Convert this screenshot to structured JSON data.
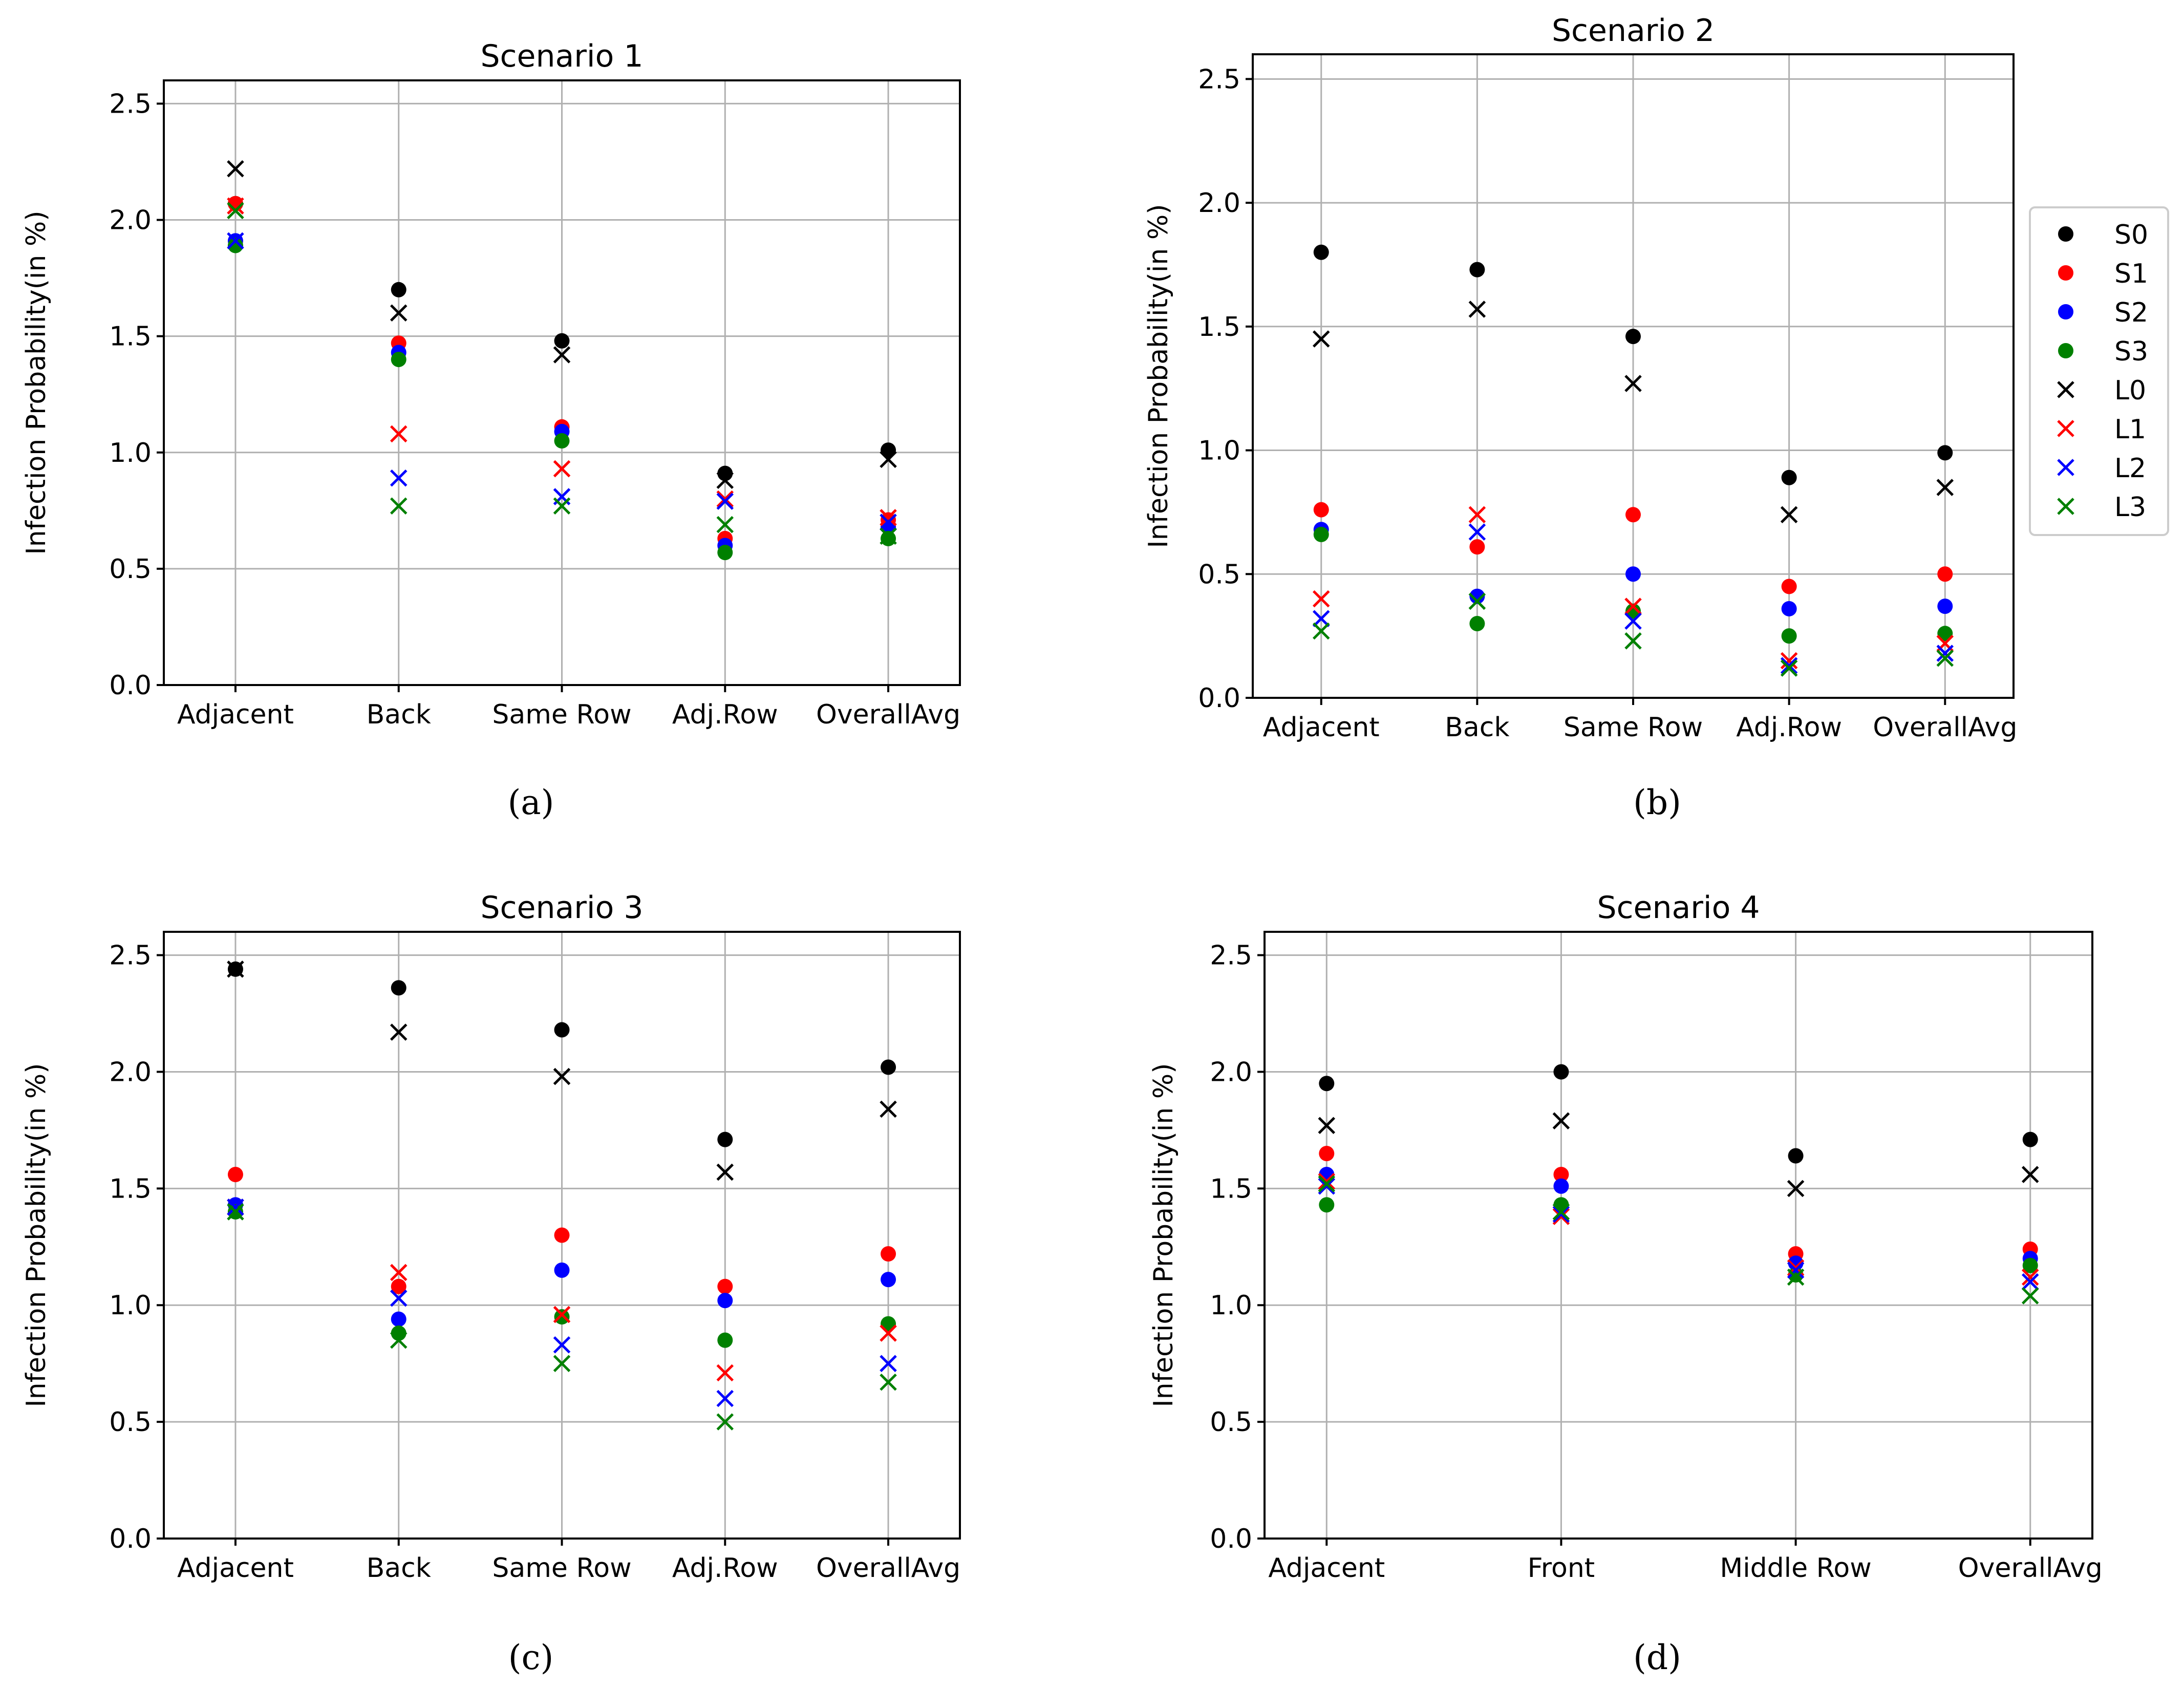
{
  "series_styles": {
    "S0": {
      "marker": "circle",
      "color": "#000000"
    },
    "S1": {
      "marker": "circle",
      "color": "#ff0000"
    },
    "S2": {
      "marker": "circle",
      "color": "#0000ff"
    },
    "S3": {
      "marker": "circle",
      "color": "#008000"
    },
    "L0": {
      "marker": "x",
      "color": "#000000"
    },
    "L1": {
      "marker": "x",
      "color": "#ff0000"
    },
    "L2": {
      "marker": "x",
      "color": "#0000ff"
    },
    "L3": {
      "marker": "x",
      "color": "#008000"
    }
  },
  "legend": {
    "placement": "right of panel (b)",
    "entries": [
      "S0",
      "S1",
      "S2",
      "S3",
      "L0",
      "L1",
      "L2",
      "L3"
    ]
  },
  "chart_data": [
    {
      "type": "scatter",
      "title": "Scenario 1",
      "caption": "(a)",
      "ylabel": "Infection Probability(in %)",
      "xlabel": "",
      "categories": [
        "Adjacent",
        "Back",
        "Same Row",
        "Adj.Row",
        "OverallAvg"
      ],
      "ylim": [
        0,
        2.6
      ],
      "yticks": [
        "0.0",
        "0.5",
        "1.0",
        "1.5",
        "2.0",
        "2.5"
      ],
      "grid": true,
      "series": [
        {
          "name": "S0",
          "values": [
            2.07,
            1.7,
            1.48,
            0.91,
            1.01
          ]
        },
        {
          "name": "S1",
          "values": [
            2.07,
            1.47,
            1.11,
            0.63,
            0.71
          ]
        },
        {
          "name": "S2",
          "values": [
            1.91,
            1.43,
            1.09,
            0.6,
            0.68
          ]
        },
        {
          "name": "S3",
          "values": [
            1.89,
            1.4,
            1.05,
            0.57,
            0.63
          ]
        },
        {
          "name": "L0",
          "values": [
            2.22,
            1.6,
            1.42,
            0.88,
            0.97
          ]
        },
        {
          "name": "L1",
          "values": [
            2.06,
            1.08,
            0.93,
            0.8,
            0.72
          ]
        },
        {
          "name": "L2",
          "values": [
            1.91,
            0.89,
            0.81,
            0.79,
            0.7
          ]
        },
        {
          "name": "L3",
          "values": [
            2.04,
            0.77,
            0.77,
            0.69,
            0.64
          ]
        }
      ]
    },
    {
      "type": "scatter",
      "title": "Scenario 2",
      "caption": "(b)",
      "ylabel": "Infection Probability(in %)",
      "xlabel": "",
      "categories": [
        "Adjacent",
        "Back",
        "Same Row",
        "Adj.Row",
        "OverallAvg"
      ],
      "ylim": [
        0,
        2.6
      ],
      "yticks": [
        "0.0",
        "0.5",
        "1.0",
        "1.5",
        "2.0",
        "2.5"
      ],
      "grid": true,
      "series": [
        {
          "name": "S0",
          "values": [
            1.8,
            1.73,
            1.46,
            0.89,
            0.99
          ]
        },
        {
          "name": "S1",
          "values": [
            0.76,
            0.61,
            0.74,
            0.45,
            0.5
          ]
        },
        {
          "name": "S2",
          "values": [
            0.68,
            0.41,
            0.5,
            0.36,
            0.37
          ]
        },
        {
          "name": "S3",
          "values": [
            0.66,
            0.3,
            0.35,
            0.25,
            0.26
          ]
        },
        {
          "name": "L0",
          "values": [
            1.45,
            1.57,
            1.27,
            0.74,
            0.85
          ]
        },
        {
          "name": "L1",
          "values": [
            0.4,
            0.74,
            0.37,
            0.15,
            0.22
          ]
        },
        {
          "name": "L2",
          "values": [
            0.32,
            0.67,
            0.31,
            0.13,
            0.18
          ]
        },
        {
          "name": "L3",
          "values": [
            0.27,
            0.39,
            0.23,
            0.12,
            0.16
          ]
        }
      ]
    },
    {
      "type": "scatter",
      "title": "Scenario 3",
      "caption": "(c)",
      "ylabel": "Infection Probability(in %)",
      "xlabel": "",
      "categories": [
        "Adjacent",
        "Back",
        "Same Row",
        "Adj.Row",
        "OverallAvg"
      ],
      "ylim": [
        0,
        2.6
      ],
      "yticks": [
        "0.0",
        "0.5",
        "1.0",
        "1.5",
        "2.0",
        "2.5"
      ],
      "grid": true,
      "series": [
        {
          "name": "S0",
          "values": [
            2.44,
            2.36,
            2.18,
            1.71,
            2.02
          ]
        },
        {
          "name": "S1",
          "values": [
            1.56,
            1.08,
            1.3,
            1.08,
            1.22
          ]
        },
        {
          "name": "S2",
          "values": [
            1.43,
            0.94,
            1.15,
            1.02,
            1.11
          ]
        },
        {
          "name": "S3",
          "values": [
            1.4,
            0.88,
            0.95,
            0.85,
            0.92
          ]
        },
        {
          "name": "L0",
          "values": [
            2.44,
            2.17,
            1.98,
            1.57,
            1.84
          ]
        },
        {
          "name": "L1",
          "values": [
            1.42,
            1.14,
            0.96,
            0.71,
            0.88
          ]
        },
        {
          "name": "L2",
          "values": [
            1.42,
            1.03,
            0.83,
            0.6,
            0.75
          ]
        },
        {
          "name": "L3",
          "values": [
            1.4,
            0.85,
            0.75,
            0.5,
            0.67
          ]
        }
      ]
    },
    {
      "type": "scatter",
      "title": "Scenario 4",
      "caption": "(d)",
      "ylabel": "Infection Probability(in %)",
      "xlabel": "",
      "categories": [
        "Adjacent",
        "Front",
        "Middle Row",
        "OverallAvg"
      ],
      "ylim": [
        0,
        2.6
      ],
      "yticks": [
        "0.0",
        "0.5",
        "1.0",
        "1.5",
        "2.0",
        "2.5"
      ],
      "grid": true,
      "series": [
        {
          "name": "S0",
          "values": [
            1.95,
            2.0,
            1.64,
            1.71
          ]
        },
        {
          "name": "S1",
          "values": [
            1.65,
            1.56,
            1.22,
            1.24
          ]
        },
        {
          "name": "S2",
          "values": [
            1.56,
            1.51,
            1.18,
            1.2
          ]
        },
        {
          "name": "S3",
          "values": [
            1.43,
            1.43,
            1.13,
            1.17
          ]
        },
        {
          "name": "L0",
          "values": [
            1.77,
            1.79,
            1.5,
            1.56
          ]
        },
        {
          "name": "L1",
          "values": [
            1.53,
            1.38,
            1.16,
            1.12
          ]
        },
        {
          "name": "L2",
          "values": [
            1.51,
            1.39,
            1.15,
            1.1
          ]
        },
        {
          "name": "L3",
          "values": [
            1.52,
            1.4,
            1.12,
            1.04
          ]
        }
      ]
    }
  ]
}
